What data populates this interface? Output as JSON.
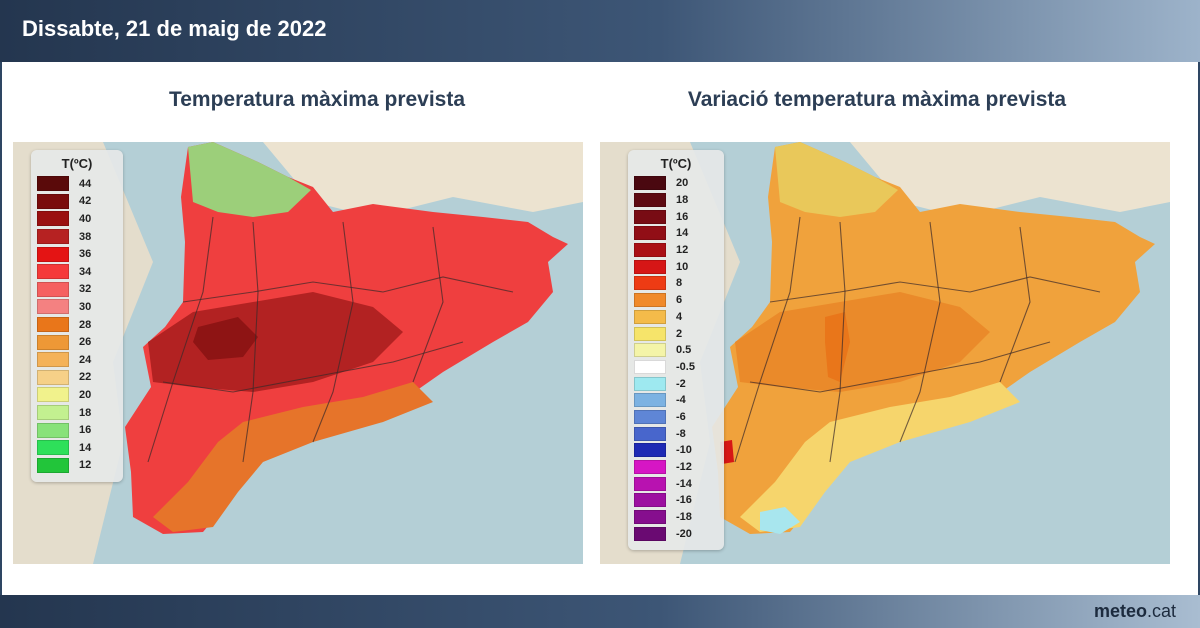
{
  "header": {
    "date": "Dissabte, 21 de maig de 2022"
  },
  "footer": {
    "brand_bold": "meteo",
    "brand_rest": ".cat"
  },
  "panels": [
    {
      "title": "Temperatura màxima prevista",
      "legend": {
        "title": "T(ºC)",
        "levels": [
          {
            "label": "44",
            "color": "#5a0a0a"
          },
          {
            "label": "42",
            "color": "#7a0c0c"
          },
          {
            "label": "40",
            "color": "#9a1010"
          },
          {
            "label": "38",
            "color": "#b62222"
          },
          {
            "label": "36",
            "color": "#e41414"
          },
          {
            "label": "34",
            "color": "#f53a3a"
          },
          {
            "label": "32",
            "color": "#f56060"
          },
          {
            "label": "30",
            "color": "#f48181"
          },
          {
            "label": "28",
            "color": "#e9761a"
          },
          {
            "label": "26",
            "color": "#ee9836"
          },
          {
            "label": "24",
            "color": "#f4b259"
          },
          {
            "label": "22",
            "color": "#f6d088"
          },
          {
            "label": "20",
            "color": "#f1f28c"
          },
          {
            "label": "18",
            "color": "#c3f090"
          },
          {
            "label": "16",
            "color": "#88e27a"
          },
          {
            "label": "14",
            "color": "#2ee05a"
          },
          {
            "label": "12",
            "color": "#22c53a"
          }
        ]
      },
      "fill": {
        "main": "#ef3f3f",
        "hot": "#b22222",
        "hottest": "#8e1414",
        "coast": "#e6742a",
        "mountain": "#9ccf7a"
      }
    },
    {
      "title": "Variació temperatura màxima prevista",
      "legend": {
        "title": "T(ºC)",
        "levels": [
          {
            "label": "20",
            "color": "#4a0810"
          },
          {
            "label": "18",
            "color": "#5e0a12"
          },
          {
            "label": "16",
            "color": "#780c14"
          },
          {
            "label": "14",
            "color": "#910e16"
          },
          {
            "label": "12",
            "color": "#ab1016"
          },
          {
            "label": "10",
            "color": "#d61616"
          },
          {
            "label": "8",
            "color": "#ee3b14"
          },
          {
            "label": "6",
            "color": "#f08a2a"
          },
          {
            "label": "4",
            "color": "#f4bb4a"
          },
          {
            "label": "2",
            "color": "#f6e46a"
          },
          {
            "label": "0.5",
            "color": "#f4f4a8"
          },
          {
            "label": "-0.5",
            "color": "#ffffff"
          },
          {
            "label": "-2",
            "color": "#9ee9f0"
          },
          {
            "label": "-4",
            "color": "#7cb2e2"
          },
          {
            "label": "-6",
            "color": "#5f86d6"
          },
          {
            "label": "-8",
            "color": "#4866cc"
          },
          {
            "label": "-10",
            "color": "#1e2ab4"
          },
          {
            "label": "-12",
            "color": "#d616c4"
          },
          {
            "label": "-14",
            "color": "#b812b0"
          },
          {
            "label": "-16",
            "color": "#9c10a0"
          },
          {
            "label": "-18",
            "color": "#860e8e"
          },
          {
            "label": "-20",
            "color": "#6a0a72"
          }
        ]
      },
      "fill": {
        "main": "#f0a23c",
        "hot": "#ea8a2a",
        "hottest": "#e9761a",
        "coast": "#f6d56c",
        "mountain": "#e9c85a"
      }
    }
  ]
}
